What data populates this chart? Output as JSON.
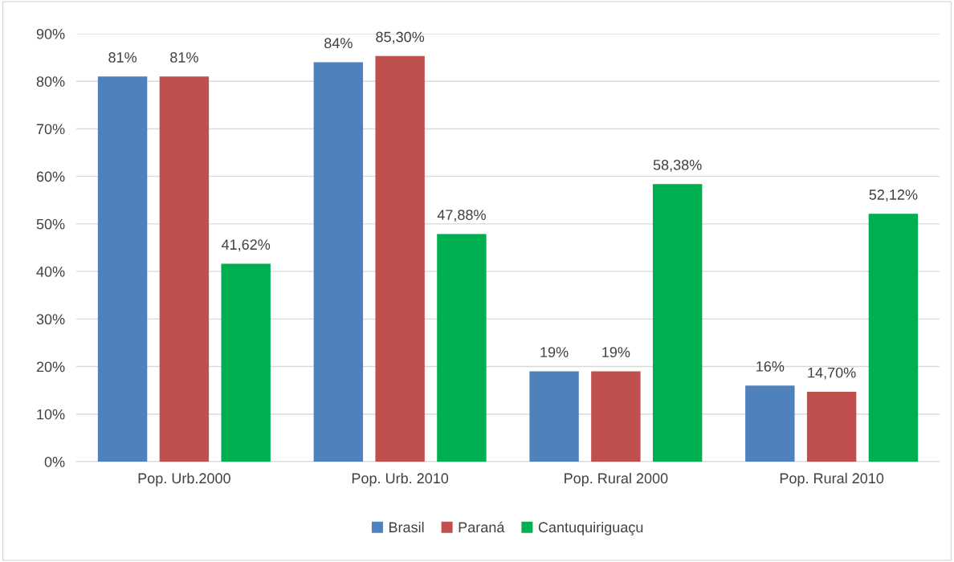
{
  "chart_data": {
    "type": "bar",
    "categories": [
      "Pop. Urb.2000",
      "Pop. Urb. 2010",
      "Pop. Rural 2000",
      "Pop. Rural 2010"
    ],
    "series": [
      {
        "name": "Brasil",
        "color": "#4f81bd",
        "values": [
          81,
          84,
          19,
          16
        ],
        "value_labels": [
          "81%",
          "84%",
          "19%",
          "16%"
        ]
      },
      {
        "name": "Paraná",
        "color": "#c0504d",
        "values": [
          81,
          85.3,
          19,
          14.7
        ],
        "value_labels": [
          "81%",
          "85,30%",
          "19%",
          "14,70%"
        ]
      },
      {
        "name": "Cantuquiriguaçu",
        "color": "#00b050",
        "values": [
          41.62,
          47.88,
          58.38,
          52.12
        ],
        "value_labels": [
          "41,62%",
          "47,88%",
          "58,38%",
          "52,12%"
        ]
      }
    ],
    "ylim": [
      0,
      90
    ],
    "yticks": [
      {
        "value": 0,
        "label": "0%"
      },
      {
        "value": 10,
        "label": "10%"
      },
      {
        "value": 20,
        "label": "20%"
      },
      {
        "value": 30,
        "label": "30%"
      },
      {
        "value": 40,
        "label": "40%"
      },
      {
        "value": 50,
        "label": "50%"
      },
      {
        "value": 60,
        "label": "60%"
      },
      {
        "value": 70,
        "label": "70%"
      },
      {
        "value": 80,
        "label": "80%"
      },
      {
        "value": 90,
        "label": "90%"
      }
    ],
    "grid": "y",
    "legend": "bottom"
  }
}
